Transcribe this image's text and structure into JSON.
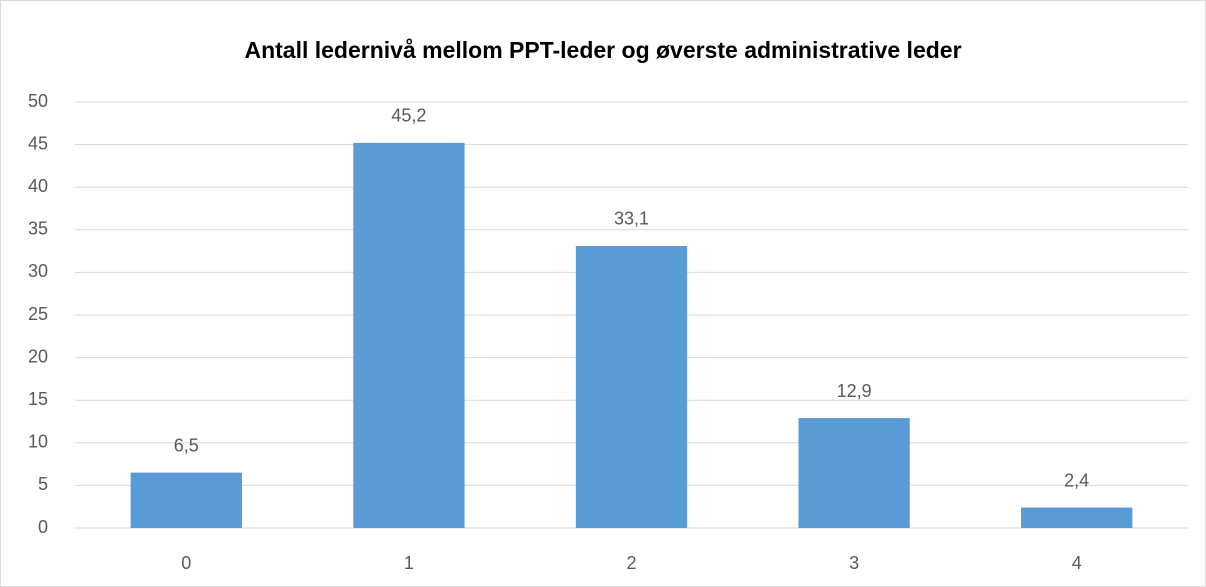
{
  "chart_data": {
    "type": "bar",
    "title": "Antall ledernivå mellom PPT-leder og øverste administrative leder",
    "categories": [
      "0",
      "1",
      "2",
      "3",
      "4"
    ],
    "values": [
      6.5,
      45.2,
      33.1,
      12.9,
      2.4
    ],
    "value_labels": [
      "6,5",
      "45,2",
      "33,1",
      "12,9",
      "2,4"
    ],
    "color": "#5b9bd5",
    "ylim": [
      0,
      50
    ],
    "yticks": [
      0,
      5,
      10,
      15,
      20,
      25,
      30,
      35,
      40,
      45,
      50
    ],
    "grid": true
  }
}
